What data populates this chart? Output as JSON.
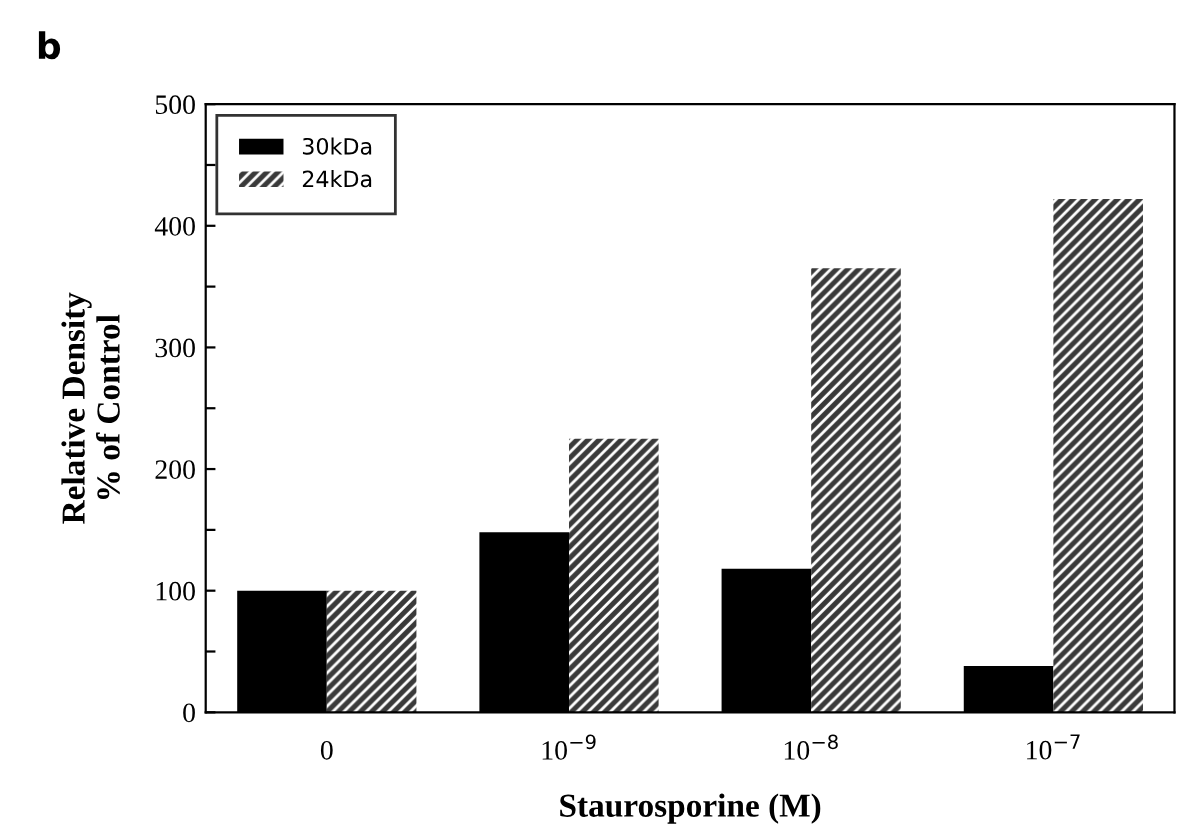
{
  "chart_data": {
    "type": "bar",
    "annotations": [
      "b"
    ],
    "xlabel": "Staurosporine (M)",
    "ylabel": "Relative Density\n% of Control",
    "categories": [
      "0",
      "10$^{−9}$",
      "10$^{−8}$",
      "10$^{−7}$"
    ],
    "series": [
      {
        "name": "30kDa",
        "color": "#000000",
        "values": [
          100,
          148,
          118,
          38
        ]
      },
      {
        "name": "24kDa",
        "color": "#3a3a3a",
        "values": [
          100,
          225,
          365,
          422
        ]
      }
    ],
    "ylim": [
      0,
      500
    ],
    "yticks": [
      0,
      {
        "value": 50,
        "label": null
      },
      100,
      {
        "value": 150,
        "label": null
      },
      200,
      {
        "value": 250,
        "label": null
      },
      300,
      {
        "value": 350,
        "label": null
      },
      400,
      {
        "value": 450,
        "label": null
      },
      500
    ],
    "grid": false,
    "legend": "top left"
  }
}
